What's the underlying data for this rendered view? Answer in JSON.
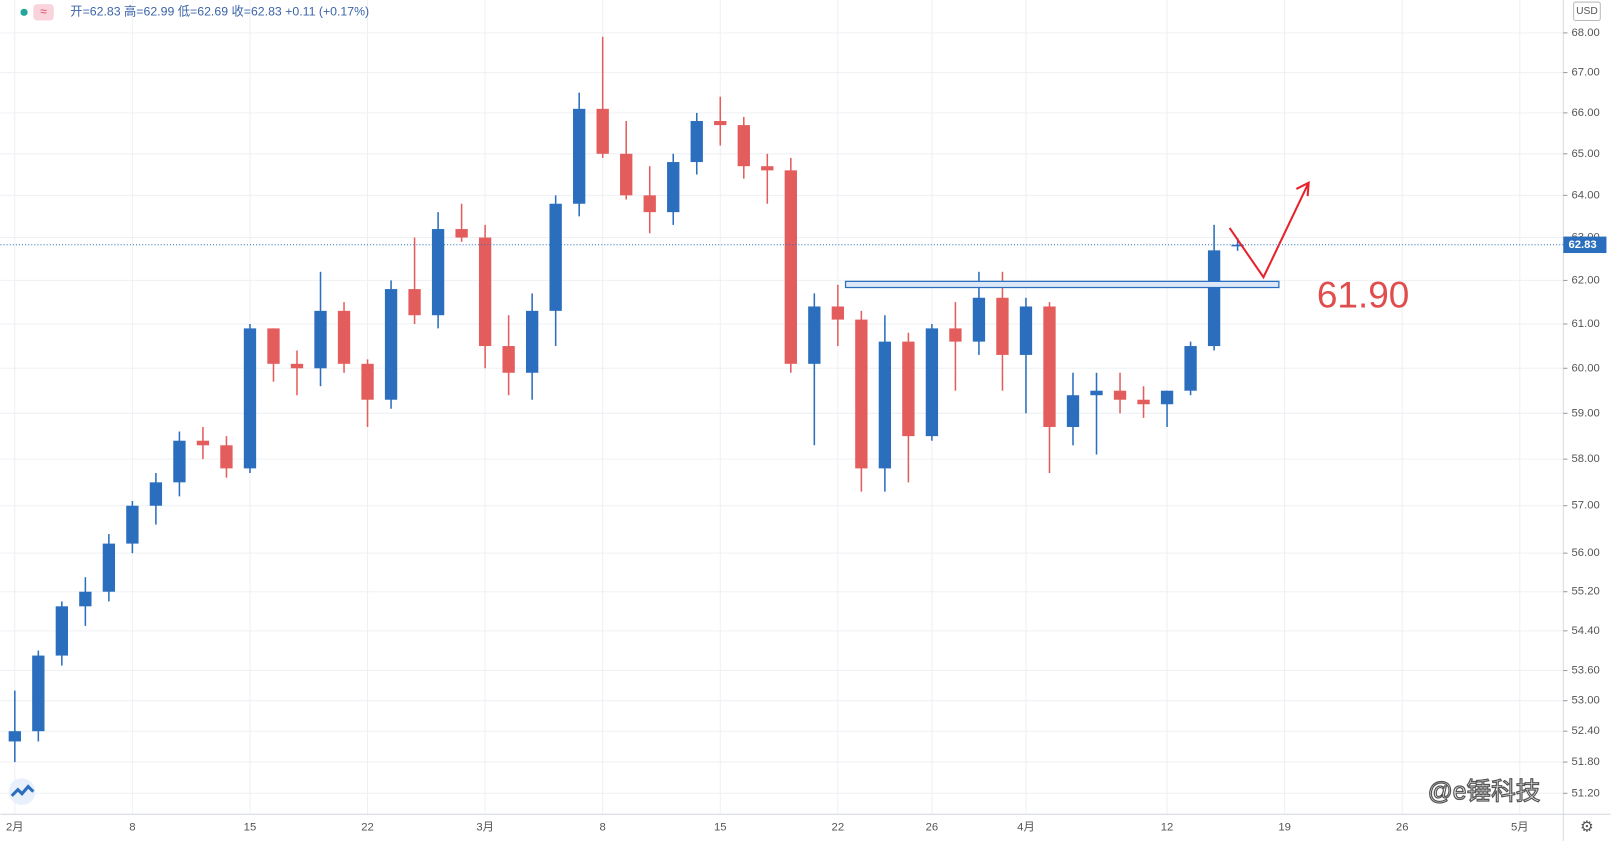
{
  "chart_data": {
    "type": "candlestick",
    "header": "开=62.83 高=62.99 低=62.69 收=62.83 +0.11 (+0.17%)",
    "currency": "USD",
    "annotation": "61.90",
    "watermark": "@e锤科技",
    "log_scale": true,
    "grid": true,
    "up_color": "#2a6ebd",
    "down_color": "#e35d5d",
    "ylim": [
      50.8,
      68.84
    ],
    "yticks": [
      {
        "value": 68,
        "label": "68.00"
      },
      {
        "value": 67,
        "label": "67.00"
      },
      {
        "value": 66,
        "label": "66.00"
      },
      {
        "value": 65,
        "label": "65.00"
      },
      {
        "value": 64,
        "label": "64.00"
      },
      {
        "value": 63,
        "label": "63.00"
      },
      {
        "value": 62,
        "label": "62.00"
      },
      {
        "value": 61,
        "label": "61.00"
      },
      {
        "value": 60,
        "label": "60.00"
      },
      {
        "value": 59,
        "label": "59.00"
      },
      {
        "value": 58,
        "label": "58.00"
      },
      {
        "value": 57,
        "label": "57.00"
      },
      {
        "value": 56,
        "label": "56.00"
      },
      {
        "value": 55.2,
        "label": "55.20"
      },
      {
        "value": 54.4,
        "label": "54.40"
      },
      {
        "value": 53.6,
        "label": "53.60"
      },
      {
        "value": 53,
        "label": "53.00"
      },
      {
        "value": 52.4,
        "label": "52.40"
      },
      {
        "value": 51.8,
        "label": "51.80"
      },
      {
        "value": 51.2,
        "label": "51.20"
      }
    ],
    "last_price": {
      "value": 62.83,
      "label": "62.83"
    },
    "categories": [
      "2月",
      null,
      null,
      null,
      null,
      "8",
      null,
      null,
      null,
      null,
      "15",
      null,
      null,
      null,
      null,
      "22",
      null,
      null,
      null,
      null,
      "3月",
      null,
      null,
      null,
      null,
      "8",
      null,
      null,
      null,
      null,
      "15",
      null,
      null,
      null,
      null,
      "22",
      null,
      null,
      null,
      "26",
      null,
      null,
      null,
      "4月",
      null,
      null,
      null,
      null,
      null,
      "12",
      null,
      null,
      null,
      null,
      "19",
      null,
      null,
      null,
      null,
      "26",
      null,
      null,
      null,
      null,
      "5月"
    ],
    "open": [
      52.2,
      52.4,
      53.9,
      54.9,
      55.2,
      56.2,
      57.0,
      57.5,
      58.4,
      58.3,
      57.8,
      60.9,
      60.1,
      60.0,
      61.3,
      60.1,
      59.3,
      61.8,
      61.2,
      63.2,
      63.0,
      60.5,
      59.9,
      61.3,
      63.8,
      66.1,
      65.0,
      64.0,
      63.6,
      64.8,
      65.8,
      65.7,
      64.7,
      64.6,
      60.1,
      61.4,
      61.1,
      57.8,
      60.6,
      58.5,
      60.9,
      60.6,
      61.6,
      60.3,
      61.4,
      58.7,
      59.4,
      59.5,
      59.3,
      59.2,
      59.5,
      60.5,
      62.83,
      null,
      null,
      null,
      null,
      null,
      null,
      null,
      null,
      null,
      null,
      null,
      null
    ],
    "high": [
      53.2,
      54.0,
      55.0,
      55.5,
      56.4,
      57.1,
      57.7,
      58.6,
      58.7,
      58.5,
      61.0,
      60.9,
      60.4,
      62.2,
      61.5,
      60.2,
      62.0,
      63.0,
      63.6,
      63.8,
      63.3,
      61.2,
      61.7,
      64.0,
      66.5,
      67.9,
      65.8,
      64.7,
      65.0,
      66.0,
      66.4,
      65.9,
      65.0,
      64.9,
      61.7,
      61.9,
      61.3,
      61.2,
      60.8,
      61.0,
      61.5,
      62.2,
      62.2,
      61.6,
      61.5,
      59.9,
      59.9,
      59.9,
      59.6,
      59.5,
      60.6,
      63.3,
      62.99,
      null,
      null,
      null,
      null,
      null,
      null,
      null,
      null,
      null,
      null,
      null,
      null
    ],
    "low": [
      51.8,
      52.2,
      53.7,
      54.5,
      55.0,
      56.0,
      56.6,
      57.2,
      58.0,
      57.6,
      57.7,
      59.7,
      59.4,
      59.6,
      59.9,
      58.7,
      59.1,
      61.0,
      60.9,
      62.9,
      60.0,
      59.4,
      59.3,
      60.5,
      63.5,
      64.9,
      63.9,
      63.1,
      63.3,
      64.5,
      65.2,
      64.4,
      63.8,
      59.9,
      58.3,
      60.5,
      57.3,
      57.3,
      57.5,
      58.4,
      59.5,
      60.3,
      59.5,
      59.0,
      57.7,
      58.3,
      58.1,
      59.0,
      58.9,
      58.7,
      59.4,
      60.4,
      62.69,
      null,
      null,
      null,
      null,
      null,
      null,
      null,
      null,
      null,
      null,
      null,
      null
    ],
    "close": [
      52.4,
      53.9,
      54.9,
      55.2,
      56.2,
      57.0,
      57.5,
      58.4,
      58.3,
      57.8,
      60.9,
      60.1,
      60.0,
      61.3,
      60.1,
      59.3,
      61.8,
      61.2,
      63.2,
      63.0,
      60.5,
      59.9,
      61.3,
      63.8,
      66.1,
      65.0,
      64.0,
      63.6,
      64.8,
      65.8,
      65.7,
      64.7,
      64.6,
      60.1,
      61.4,
      61.1,
      57.8,
      60.6,
      58.5,
      60.9,
      60.6,
      61.6,
      60.3,
      61.4,
      58.7,
      59.4,
      59.5,
      59.3,
      59.2,
      59.5,
      60.5,
      62.7,
      62.83,
      null,
      null,
      null,
      null,
      null,
      null,
      null,
      null,
      null,
      null,
      null,
      null
    ]
  }
}
